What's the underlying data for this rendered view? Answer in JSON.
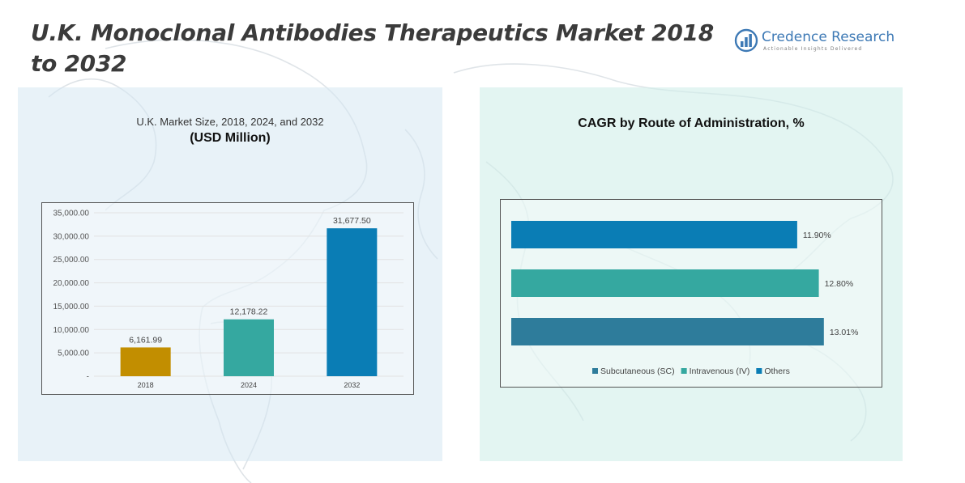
{
  "title": "U.K. Monoclonal Antibodies Therapeutics Market 2018 to 2032",
  "logo": {
    "name": "Credence Research",
    "tagline": "Actionable Insights Delivered"
  },
  "colors": {
    "gold": "#C28E00",
    "teal": "#35A8A0",
    "blue": "#0A7DB5",
    "steel": "#2E7C9B"
  },
  "left_panel": {
    "title_line1": "U.K. Market Size, 2018, 2024, and 2032",
    "title_line2": "(USD Million)"
  },
  "right_panel": {
    "title": "CAGR by Route of Administration, %"
  },
  "chart_data": [
    {
      "type": "bar",
      "categories": [
        "2018",
        "2024",
        "2032"
      ],
      "values": [
        6161.99,
        12178.22,
        31677.5
      ],
      "data_labels": [
        "6,161.99",
        "12,178.22",
        "31,677.50"
      ],
      "bar_colors": [
        "#C28E00",
        "#35A8A0",
        "#0A7DB5"
      ],
      "y_ticks": [
        "-",
        "5,000.00",
        "10,000.00",
        "15,000.00",
        "20,000.00",
        "25,000.00",
        "30,000.00",
        "35,000.00"
      ],
      "ylim": [
        0,
        35000
      ],
      "grid": true
    },
    {
      "type": "bar",
      "orientation": "horizontal",
      "categories": [
        "Others",
        "Intravenous (IV)",
        "Subcutaneous (SC)"
      ],
      "values": [
        11.9,
        12.8,
        13.01
      ],
      "data_labels": [
        "11.90%",
        "12.80%",
        "13.01%"
      ],
      "bar_colors": [
        "#0A7DB5",
        "#35A8A0",
        "#2E7C9B"
      ],
      "xlim": [
        0,
        14.5
      ],
      "legend": {
        "position": "bottom",
        "items": [
          {
            "label": "Subcutaneous (SC)",
            "color": "#2E7C9B"
          },
          {
            "label": "Intravenous (IV)",
            "color": "#35A8A0"
          },
          {
            "label": "Others",
            "color": "#0A7DB5"
          }
        ]
      },
      "grid": false
    }
  ]
}
